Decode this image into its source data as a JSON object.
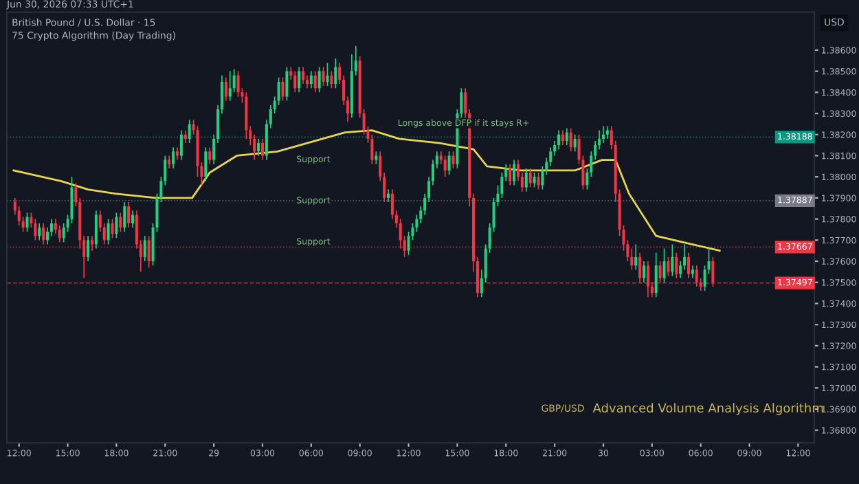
{
  "chart_data": {
    "type": "candlestick",
    "title": "British Pound / U.S. Dollar · 15",
    "subtitle": "75 Crypto Algorithm (Day Trading)",
    "ylabel": "USD",
    "x": [
      "2026-06-28T11:45",
      "2026-06-28T12:00",
      "2026-06-28T12:15",
      "2026-06-28T12:30",
      "2026-06-28T12:45",
      "2026-06-28T13:00",
      "2026-06-28T13:15",
      "2026-06-28T13:30",
      "2026-06-28T13:45",
      "2026-06-28T14:00",
      "2026-06-28T14:15",
      "2026-06-28T14:30",
      "2026-06-28T14:45",
      "2026-06-28T15:00",
      "2026-06-28T15:15",
      "2026-06-28T15:30",
      "2026-06-28T15:45",
      "2026-06-28T16:00",
      "2026-06-28T16:15",
      "2026-06-28T16:30",
      "2026-06-28T16:45",
      "2026-06-28T17:00",
      "2026-06-28T17:15",
      "2026-06-28T17:30",
      "2026-06-28T17:45",
      "2026-06-28T18:00",
      "2026-06-28T18:15",
      "2026-06-28T18:30",
      "2026-06-28T18:45",
      "2026-06-28T19:00",
      "2026-06-28T19:15",
      "2026-06-28T19:30",
      "2026-06-28T19:45",
      "2026-06-28T20:00",
      "2026-06-28T20:15",
      "2026-06-28T20:30",
      "2026-06-28T20:45",
      "2026-06-28T21:00",
      "2026-06-28T21:15",
      "2026-06-28T21:30",
      "2026-06-28T21:45",
      "2026-06-28T22:00",
      "2026-06-28T22:15",
      "2026-06-28T22:30",
      "2026-06-28T22:45",
      "2026-06-28T23:00",
      "2026-06-28T23:15",
      "2026-06-28T23:30",
      "2026-06-28T23:45",
      "2026-06-29T00:00",
      "2026-06-29T00:15",
      "2026-06-29T00:30",
      "2026-06-29T00:45",
      "2026-06-29T01:00",
      "2026-06-29T01:15",
      "2026-06-29T01:30",
      "2026-06-29T01:45",
      "2026-06-29T02:00",
      "2026-06-29T02:15",
      "2026-06-29T02:30",
      "2026-06-29T02:45",
      "2026-06-29T03:00",
      "2026-06-29T03:15",
      "2026-06-29T03:30",
      "2026-06-29T03:45",
      "2026-06-29T04:00",
      "2026-06-29T04:15",
      "2026-06-29T04:30",
      "2026-06-29T04:45",
      "2026-06-29T05:00",
      "2026-06-29T05:15",
      "2026-06-29T05:30",
      "2026-06-29T05:45",
      "2026-06-29T06:00",
      "2026-06-29T06:15",
      "2026-06-29T06:30",
      "2026-06-29T06:45",
      "2026-06-29T07:00",
      "2026-06-29T07:15",
      "2026-06-29T07:30",
      "2026-06-29T07:45",
      "2026-06-29T08:00",
      "2026-06-29T08:15",
      "2026-06-29T08:30",
      "2026-06-29T08:45",
      "2026-06-29T09:00",
      "2026-06-29T09:15",
      "2026-06-29T09:30",
      "2026-06-29T09:45",
      "2026-06-29T10:00",
      "2026-06-29T10:15",
      "2026-06-29T10:30",
      "2026-06-29T10:45",
      "2026-06-29T11:00",
      "2026-06-29T11:15",
      "2026-06-29T11:30",
      "2026-06-29T11:45",
      "2026-06-29T12:00",
      "2026-06-29T12:15",
      "2026-06-29T12:30",
      "2026-06-29T12:45",
      "2026-06-29T13:00",
      "2026-06-29T13:15",
      "2026-06-29T13:30",
      "2026-06-29T13:45",
      "2026-06-29T14:00",
      "2026-06-29T14:15",
      "2026-06-29T14:30",
      "2026-06-29T14:45",
      "2026-06-29T15:00",
      "2026-06-29T15:15",
      "2026-06-29T15:30",
      "2026-06-29T15:45",
      "2026-06-29T16:00",
      "2026-06-29T16:15",
      "2026-06-29T16:30",
      "2026-06-29T16:45",
      "2026-06-29T17:00",
      "2026-06-29T17:15",
      "2026-06-29T17:30",
      "2026-06-29T17:45",
      "2026-06-29T18:00",
      "2026-06-29T18:15",
      "2026-06-29T18:30",
      "2026-06-29T18:45",
      "2026-06-29T19:00",
      "2026-06-29T19:15",
      "2026-06-29T19:30",
      "2026-06-29T19:45",
      "2026-06-29T20:00",
      "2026-06-29T20:15",
      "2026-06-29T20:30",
      "2026-06-29T20:45",
      "2026-06-29T21:00",
      "2026-06-29T21:15",
      "2026-06-29T21:30",
      "2026-06-29T21:45",
      "2026-06-29T22:00",
      "2026-06-29T22:15",
      "2026-06-29T22:30",
      "2026-06-29T22:45",
      "2026-06-29T23:00",
      "2026-06-29T23:15",
      "2026-06-29T23:30",
      "2026-06-29T23:45",
      "2026-06-30T00:00",
      "2026-06-30T00:15",
      "2026-06-30T00:30",
      "2026-06-30T00:45",
      "2026-06-30T01:00",
      "2026-06-30T01:15",
      "2026-06-30T01:30",
      "2026-06-30T01:45",
      "2026-06-30T02:00",
      "2026-06-30T02:15",
      "2026-06-30T02:30",
      "2026-06-30T02:45",
      "2026-06-30T03:00",
      "2026-06-30T03:15",
      "2026-06-30T03:30",
      "2026-06-30T03:45",
      "2026-06-30T04:00",
      "2026-06-30T04:15",
      "2026-06-30T04:30",
      "2026-06-30T04:45",
      "2026-06-30T05:00",
      "2026-06-30T05:15",
      "2026-06-30T05:30",
      "2026-06-30T05:45",
      "2026-06-30T06:00",
      "2026-06-30T06:15",
      "2026-06-30T06:30",
      "2026-06-30T06:45"
    ],
    "ohlc": [
      [
        1.3788,
        1.379,
        1.3782,
        1.3784
      ],
      [
        1.3784,
        1.3786,
        1.3777,
        1.3779
      ],
      [
        1.3779,
        1.3781,
        1.3774,
        1.3776
      ],
      [
        1.3776,
        1.3783,
        1.3774,
        1.3781
      ],
      [
        1.3781,
        1.3783,
        1.3776,
        1.3778
      ],
      [
        1.3778,
        1.378,
        1.377,
        1.3772
      ],
      [
        1.3772,
        1.3778,
        1.377,
        1.3776
      ],
      [
        1.3776,
        1.3778,
        1.3768,
        1.377
      ],
      [
        1.377,
        1.3776,
        1.3768,
        1.3774
      ],
      [
        1.3774,
        1.378,
        1.3772,
        1.3778
      ],
      [
        1.3778,
        1.378,
        1.3773,
        1.3775
      ],
      [
        1.3775,
        1.3777,
        1.3769,
        1.3771
      ],
      [
        1.3771,
        1.3778,
        1.3769,
        1.3776
      ],
      [
        1.3776,
        1.3782,
        1.3774,
        1.378
      ],
      [
        1.378,
        1.38,
        1.3778,
        1.3795
      ],
      [
        1.3795,
        1.3797,
        1.3786,
        1.3788
      ],
      [
        1.3788,
        1.379,
        1.3766,
        1.377
      ],
      [
        1.377,
        1.3772,
        1.3752,
        1.3762
      ],
      [
        1.3762,
        1.3772,
        1.376,
        1.377
      ],
      [
        1.377,
        1.3772,
        1.3765,
        1.3768
      ],
      [
        1.3768,
        1.3784,
        1.3766,
        1.3782
      ],
      [
        1.3782,
        1.3784,
        1.3774,
        1.3776
      ],
      [
        1.3776,
        1.3778,
        1.3768,
        1.377
      ],
      [
        1.377,
        1.378,
        1.3768,
        1.3778
      ],
      [
        1.3778,
        1.378,
        1.3771,
        1.3773
      ],
      [
        1.3773,
        1.3783,
        1.3771,
        1.3781
      ],
      [
        1.3781,
        1.3783,
        1.3774,
        1.3776
      ],
      [
        1.3776,
        1.3788,
        1.3774,
        1.3786
      ],
      [
        1.3786,
        1.3788,
        1.3776,
        1.3778
      ],
      [
        1.3778,
        1.3784,
        1.3776,
        1.3782
      ],
      [
        1.3782,
        1.3784,
        1.3766,
        1.3768
      ],
      [
        1.3768,
        1.377,
        1.3755,
        1.3762
      ],
      [
        1.3762,
        1.3772,
        1.376,
        1.377
      ],
      [
        1.377,
        1.3772,
        1.3757,
        1.376
      ],
      [
        1.376,
        1.3778,
        1.3758,
        1.3776
      ],
      [
        1.3776,
        1.3792,
        1.3774,
        1.379
      ],
      [
        1.379,
        1.38,
        1.3788,
        1.3798
      ],
      [
        1.3798,
        1.381,
        1.3796,
        1.3808
      ],
      [
        1.3808,
        1.381,
        1.3804,
        1.3806
      ],
      [
        1.3806,
        1.3814,
        1.3804,
        1.3812
      ],
      [
        1.3812,
        1.3814,
        1.3808,
        1.381
      ],
      [
        1.381,
        1.3822,
        1.3808,
        1.382
      ],
      [
        1.382,
        1.3822,
        1.3816,
        1.3818
      ],
      [
        1.3818,
        1.3827,
        1.3816,
        1.3825
      ],
      [
        1.3825,
        1.3827,
        1.382,
        1.3822
      ],
      [
        1.3822,
        1.3824,
        1.38,
        1.3805
      ],
      [
        1.3805,
        1.3807,
        1.3796,
        1.38
      ],
      [
        1.38,
        1.3814,
        1.3798,
        1.3812
      ],
      [
        1.3812,
        1.3814,
        1.3806,
        1.3808
      ],
      [
        1.3808,
        1.382,
        1.3806,
        1.3818
      ],
      [
        1.3818,
        1.3834,
        1.3816,
        1.3832
      ],
      [
        1.3832,
        1.3848,
        1.383,
        1.3845
      ],
      [
        1.3845,
        1.3847,
        1.3836,
        1.3838
      ],
      [
        1.3838,
        1.385,
        1.3836,
        1.3842
      ],
      [
        1.3842,
        1.3851,
        1.384,
        1.3848
      ],
      [
        1.3848,
        1.385,
        1.3838,
        1.384
      ],
      [
        1.384,
        1.3842,
        1.3835,
        1.3838
      ],
      [
        1.3838,
        1.384,
        1.3818,
        1.3822
      ],
      [
        1.3822,
        1.3824,
        1.3815,
        1.3818
      ],
      [
        1.3818,
        1.382,
        1.3808,
        1.3812
      ],
      [
        1.3812,
        1.3818,
        1.381,
        1.3816
      ],
      [
        1.3816,
        1.3818,
        1.3808,
        1.381
      ],
      [
        1.381,
        1.3827,
        1.3808,
        1.3825
      ],
      [
        1.3825,
        1.3834,
        1.3823,
        1.3832
      ],
      [
        1.3832,
        1.3838,
        1.383,
        1.3836
      ],
      [
        1.3836,
        1.3847,
        1.3834,
        1.3845
      ],
      [
        1.3845,
        1.3847,
        1.3836,
        1.3838
      ],
      [
        1.3838,
        1.3852,
        1.3836,
        1.385
      ],
      [
        1.385,
        1.3852,
        1.3846,
        1.3848
      ],
      [
        1.3848,
        1.385,
        1.384,
        1.3842
      ],
      [
        1.3842,
        1.3852,
        1.384,
        1.385
      ],
      [
        1.385,
        1.3852,
        1.3844,
        1.3846
      ],
      [
        1.3846,
        1.3848,
        1.3842,
        1.3844
      ],
      [
        1.3844,
        1.385,
        1.3842,
        1.3848
      ],
      [
        1.3848,
        1.385,
        1.384,
        1.3842
      ],
      [
        1.3842,
        1.3852,
        1.384,
        1.385
      ],
      [
        1.385,
        1.3852,
        1.3843,
        1.3845
      ],
      [
        1.3845,
        1.3854,
        1.3843,
        1.3848
      ],
      [
        1.3848,
        1.385,
        1.3842,
        1.3844
      ],
      [
        1.3844,
        1.3856,
        1.3842,
        1.3852
      ],
      [
        1.3852,
        1.3854,
        1.3844,
        1.3846
      ],
      [
        1.3846,
        1.3848,
        1.3834,
        1.3836
      ],
      [
        1.3836,
        1.3838,
        1.3826,
        1.383
      ],
      [
        1.383,
        1.3858,
        1.3828,
        1.385
      ],
      [
        1.385,
        1.3862,
        1.3848,
        1.3855
      ],
      [
        1.3855,
        1.3857,
        1.3828,
        1.383
      ],
      [
        1.383,
        1.3832,
        1.382,
        1.3822
      ],
      [
        1.3822,
        1.3824,
        1.3816,
        1.3818
      ],
      [
        1.3818,
        1.382,
        1.3806,
        1.3808
      ],
      [
        1.3808,
        1.3812,
        1.3806,
        1.381
      ],
      [
        1.381,
        1.3812,
        1.3798,
        1.38
      ],
      [
        1.38,
        1.3802,
        1.3788,
        1.379
      ],
      [
        1.379,
        1.3794,
        1.3788,
        1.3792
      ],
      [
        1.3792,
        1.3794,
        1.378,
        1.3782
      ],
      [
        1.3782,
        1.3784,
        1.3776,
        1.3778
      ],
      [
        1.3778,
        1.378,
        1.3766,
        1.377
      ],
      [
        1.377,
        1.3772,
        1.3762,
        1.3765
      ],
      [
        1.3765,
        1.3774,
        1.3763,
        1.3772
      ],
      [
        1.3772,
        1.3778,
        1.377,
        1.3776
      ],
      [
        1.3776,
        1.3782,
        1.3774,
        1.378
      ],
      [
        1.378,
        1.3786,
        1.3778,
        1.3784
      ],
      [
        1.3784,
        1.3792,
        1.3782,
        1.379
      ],
      [
        1.379,
        1.38,
        1.3788,
        1.3798
      ],
      [
        1.3798,
        1.3808,
        1.3796,
        1.3806
      ],
      [
        1.3806,
        1.3812,
        1.3804,
        1.381
      ],
      [
        1.381,
        1.3812,
        1.3806,
        1.3808
      ],
      [
        1.3808,
        1.381,
        1.38,
        1.3803
      ],
      [
        1.3803,
        1.3812,
        1.3801,
        1.381
      ],
      [
        1.381,
        1.3812,
        1.3804,
        1.3806
      ],
      [
        1.3806,
        1.3832,
        1.3804,
        1.383
      ],
      [
        1.383,
        1.3842,
        1.3828,
        1.384
      ],
      [
        1.384,
        1.3842,
        1.3828,
        1.383
      ],
      [
        1.383,
        1.3832,
        1.3786,
        1.379
      ],
      [
        1.379,
        1.3792,
        1.3755,
        1.376
      ],
      [
        1.376,
        1.3762,
        1.3743,
        1.3745
      ],
      [
        1.3745,
        1.3756,
        1.3743,
        1.3752
      ],
      [
        1.3752,
        1.3768,
        1.375,
        1.3766
      ],
      [
        1.3766,
        1.3778,
        1.3764,
        1.3776
      ],
      [
        1.3776,
        1.379,
        1.3774,
        1.3788
      ],
      [
        1.3788,
        1.3796,
        1.3786,
        1.3792
      ],
      [
        1.3792,
        1.3802,
        1.379,
        1.38
      ],
      [
        1.38,
        1.3806,
        1.3798,
        1.3804
      ],
      [
        1.3804,
        1.3806,
        1.3796,
        1.3798
      ],
      [
        1.3798,
        1.3808,
        1.3796,
        1.3806
      ],
      [
        1.3806,
        1.3808,
        1.3798,
        1.38
      ],
      [
        1.38,
        1.3802,
        1.3793,
        1.3795
      ],
      [
        1.3795,
        1.3804,
        1.3793,
        1.3802
      ],
      [
        1.3802,
        1.3804,
        1.3795,
        1.3797
      ],
      [
        1.3797,
        1.3802,
        1.3795,
        1.38
      ],
      [
        1.38,
        1.3802,
        1.3794,
        1.3796
      ],
      [
        1.3796,
        1.3805,
        1.3794,
        1.3803
      ],
      [
        1.3803,
        1.3809,
        1.3801,
        1.3807
      ],
      [
        1.3807,
        1.3814,
        1.3805,
        1.3812
      ],
      [
        1.3812,
        1.3817,
        1.381,
        1.3815
      ],
      [
        1.3815,
        1.3822,
        1.3813,
        1.382
      ],
      [
        1.382,
        1.3822,
        1.3815,
        1.3817
      ],
      [
        1.3817,
        1.3823,
        1.3815,
        1.3821
      ],
      [
        1.3821,
        1.3823,
        1.3812,
        1.3814
      ],
      [
        1.3814,
        1.382,
        1.3812,
        1.3818
      ],
      [
        1.3818,
        1.382,
        1.3806,
        1.3808
      ],
      [
        1.3808,
        1.381,
        1.3794,
        1.3796
      ],
      [
        1.3796,
        1.3804,
        1.3794,
        1.3802
      ],
      [
        1.3802,
        1.3812,
        1.38,
        1.381
      ],
      [
        1.381,
        1.3817,
        1.3808,
        1.3815
      ],
      [
        1.3815,
        1.3822,
        1.3813,
        1.3818
      ],
      [
        1.3818,
        1.3824,
        1.3816,
        1.382
      ],
      [
        1.382,
        1.3824,
        1.3818,
        1.3822
      ],
      [
        1.3822,
        1.3824,
        1.3813,
        1.3815
      ],
      [
        1.3815,
        1.3817,
        1.3788,
        1.3792
      ],
      [
        1.3792,
        1.3794,
        1.3772,
        1.3775
      ],
      [
        1.3775,
        1.3777,
        1.3765,
        1.3768
      ],
      [
        1.3768,
        1.377,
        1.376,
        1.3762
      ],
      [
        1.3762,
        1.3766,
        1.3756,
        1.3758
      ],
      [
        1.3758,
        1.3768,
        1.3756,
        1.3762
      ],
      [
        1.3762,
        1.3764,
        1.375,
        1.3752
      ],
      [
        1.3752,
        1.376,
        1.375,
        1.3758
      ],
      [
        1.3758,
        1.376,
        1.3743,
        1.3748
      ],
      [
        1.3748,
        1.375,
        1.3743,
        1.3745
      ],
      [
        1.3745,
        1.3764,
        1.3743,
        1.3758
      ],
      [
        1.3758,
        1.376,
        1.375,
        1.3752
      ],
      [
        1.3752,
        1.3766,
        1.375,
        1.376
      ],
      [
        1.376,
        1.3762,
        1.3753,
        1.3755
      ],
      [
        1.3755,
        1.3768,
        1.3753,
        1.3762
      ],
      [
        1.3762,
        1.3764,
        1.3752,
        1.3754
      ],
      [
        1.3754,
        1.376,
        1.3752,
        1.3758
      ],
      [
        1.3758,
        1.3768,
        1.3756,
        1.3762
      ],
      [
        1.3762,
        1.3764,
        1.3752,
        1.3754
      ],
      [
        1.3754,
        1.3758,
        1.3752,
        1.3756
      ],
      [
        1.3756,
        1.3758,
        1.3748,
        1.375
      ],
      [
        1.375,
        1.3752,
        1.3746,
        1.3748
      ],
      [
        1.3748,
        1.3758,
        1.3746,
        1.3756
      ],
      [
        1.3756,
        1.3766,
        1.3754,
        1.376
      ],
      [
        1.376,
        1.3762,
        1.3748,
        1.375
      ]
    ],
    "colors": [
      "#f23645",
      "#f23645",
      "#f23645",
      "#22d07d",
      "#f23645",
      "#f23645",
      "#22d07d",
      "#f23645",
      "#22d07d",
      "#22d07d",
      "#f23645",
      "#f23645",
      "#22d07d",
      "#22d07d",
      "#22d07d",
      "#f23645",
      "#f23645",
      "#f23645",
      "#22d07d",
      "#f23645",
      "#22d07d",
      "#f23645",
      "#f23645",
      "#22d07d",
      "#f23645",
      "#22d07d",
      "#f23645",
      "#22d07d",
      "#f23645",
      "#22d07d",
      "#f23645",
      "#f23645",
      "#22d07d",
      "#f23645",
      "#22d07d",
      "#22d07d",
      "#22d07d",
      "#22d07d",
      "#f23645",
      "#22d07d",
      "#f23645",
      "#22d07d",
      "#f23645",
      "#22d07d",
      "#f23645",
      "#f23645",
      "#f23645",
      "#22d07d",
      "#f23645",
      "#22d07d",
      "#22d07d",
      "#22d07d",
      "#f23645",
      "#22d07d",
      "#22d07d",
      "#f23645",
      "#f23645",
      "#f23645",
      "#f23645",
      "#f23645",
      "#22d07d",
      "#f23645",
      "#22d07d",
      "#22d07d",
      "#22d07d",
      "#22d07d",
      "#f23645",
      "#22d07d",
      "#f23645",
      "#f23645",
      "#22d07d",
      "#f23645",
      "#f23645",
      "#22d07d",
      "#f23645",
      "#22d07d",
      "#f23645",
      "#22d07d",
      "#f23645",
      "#22d07d",
      "#f23645",
      "#f23645",
      "#f23645",
      "#22d07d",
      "#22d07d",
      "#f23645",
      "#f23645",
      "#f23645",
      "#f23645",
      "#22d07d",
      "#f23645",
      "#f23645",
      "#22d07d",
      "#f23645",
      "#f23645",
      "#f23645",
      "#f23645",
      "#22d07d",
      "#22d07d",
      "#22d07d",
      "#22d07d",
      "#22d07d",
      "#22d07d",
      "#22d07d",
      "#22d07d",
      "#f23645",
      "#f23645",
      "#22d07d",
      "#f23645",
      "#22d07d",
      "#22d07d",
      "#f23645",
      "#f23645",
      "#f23645",
      "#f23645",
      "#22d07d",
      "#22d07d",
      "#22d07d",
      "#22d07d",
      "#22d07d",
      "#22d07d",
      "#22d07d",
      "#f23645",
      "#22d07d",
      "#f23645",
      "#f23645",
      "#22d07d",
      "#f23645",
      "#22d07d",
      "#f23645",
      "#22d07d",
      "#22d07d",
      "#22d07d",
      "#22d07d",
      "#22d07d",
      "#f23645",
      "#22d07d",
      "#f23645",
      "#22d07d",
      "#f23645",
      "#f23645",
      "#22d07d",
      "#22d07d",
      "#22d07d",
      "#22d07d",
      "#22d07d",
      "#22d07d",
      "#f23645",
      "#f23645",
      "#f23645",
      "#f23645",
      "#f23645",
      "#f23645",
      "#22d07d",
      "#f23645",
      "#22d07d",
      "#f23645",
      "#f23645",
      "#22d07d",
      "#f23645",
      "#22d07d",
      "#f23645",
      "#22d07d",
      "#f23645",
      "#22d07d",
      "#22d07d",
      "#f23645",
      "#22d07d",
      "#f23645",
      "#f23645",
      "#22d07d",
      "#22d07d",
      "#f23645"
    ],
    "series": [
      {
        "type": "line",
        "color": "#e8d44d",
        "x": [
          "2026-06-28T11:40",
          "2026-06-28T14:35",
          "2026-06-28T16:15",
          "2026-06-28T17:55",
          "2026-06-28T20:25",
          "2026-06-28T22:40",
          "2026-06-28T23:45",
          "2026-06-29T01:25",
          "2026-06-29T03:55",
          "2026-06-29T08:05",
          "2026-06-29T09:45",
          "2026-06-29T11:25",
          "2026-06-29T13:55",
          "2026-06-29T16:00",
          "2026-06-29T16:50",
          "2026-06-29T18:55",
          "2026-06-29T22:15",
          "2026-06-29T23:55",
          "2026-06-30T00:45",
          "2026-06-30T01:35",
          "2026-06-30T02:25",
          "2026-06-30T03:15",
          "2026-06-30T04:55",
          "2026-06-30T07:10"
        ],
        "values": [
          1.3803,
          1.3798,
          1.3794,
          1.3792,
          1.379,
          1.379,
          1.3802,
          1.381,
          1.3812,
          1.3821,
          1.3822,
          1.3818,
          1.3816,
          1.3813,
          1.3805,
          1.3803,
          1.3803,
          1.3808,
          1.3808,
          1.3792,
          1.3782,
          1.3772,
          1.3769,
          1.3765
        ]
      }
    ],
    "ref_lines": [
      {
        "axis": "y",
        "value": 1.38188,
        "label": "1.38188",
        "color": "#089981",
        "line_style": "dotted"
      },
      {
        "axis": "y",
        "value": 1.37887,
        "label": "1.37887",
        "color": "#787b86",
        "line_style": "dotted"
      },
      {
        "axis": "y",
        "value": 1.37667,
        "label": "1.37667",
        "color": "#f23645",
        "line_style": "dotted"
      },
      {
        "axis": "y",
        "value": 1.37497,
        "label": "1.37497",
        "color": "#f23645",
        "line_style": "dashed"
      }
    ],
    "annotations": [
      "Jun 30, 2026 07:33 UTC+1",
      "GBP/USD",
      "Advanced Volume Analysis Algorithm",
      "Longs above DFP if it stays R+",
      "Support",
      "Support",
      "Support"
    ],
    "xlim": [
      "2026-06-28T11:15",
      "2026-06-30T13:00"
    ],
    "xticks": [
      {
        "value": "2026-06-28T12:00",
        "label": "12:00"
      },
      {
        "value": "2026-06-28T15:00",
        "label": "15:00"
      },
      {
        "value": "2026-06-28T18:00",
        "label": "18:00"
      },
      {
        "value": "2026-06-28T21:00",
        "label": "21:00"
      },
      {
        "value": "2026-06-29T00:00",
        "label": "29"
      },
      {
        "value": "2026-06-29T03:00",
        "label": "03:00"
      },
      {
        "value": "2026-06-29T06:00",
        "label": "06:00"
      },
      {
        "value": "2026-06-29T09:00",
        "label": "09:00"
      },
      {
        "value": "2026-06-29T12:00",
        "label": "12:00"
      },
      {
        "value": "2026-06-29T15:00",
        "label": "15:00"
      },
      {
        "value": "2026-06-29T18:00",
        "label": "18:00"
      },
      {
        "value": "2026-06-29T21:00",
        "label": "21:00"
      },
      {
        "value": "2026-06-30T00:00",
        "label": "30"
      },
      {
        "value": "2026-06-30T03:00",
        "label": "03:00"
      },
      {
        "value": "2026-06-30T06:00",
        "label": "06:00"
      },
      {
        "value": "2026-06-30T09:00",
        "label": "09:00"
      },
      {
        "value": "2026-06-30T12:00",
        "label": "12:00"
      }
    ],
    "ylim": [
      1.3674,
      1.3878
    ],
    "yticks": [
      {
        "value": 1.368,
        "label": "1.36800"
      },
      {
        "value": 1.369,
        "label": "1.36900"
      },
      {
        "value": 1.37,
        "label": "1.37000"
      },
      {
        "value": 1.371,
        "label": "1.37100"
      },
      {
        "value": 1.372,
        "label": "1.37200"
      },
      {
        "value": 1.373,
        "label": "1.37300"
      },
      {
        "value": 1.374,
        "label": "1.37400"
      },
      {
        "value": 1.375,
        "label": "1.37500"
      },
      {
        "value": 1.376,
        "label": "1.37600"
      },
      {
        "value": 1.377,
        "label": "1.37700"
      },
      {
        "value": 1.378,
        "label": "1.37800"
      },
      {
        "value": 1.379,
        "label": "1.37900"
      },
      {
        "value": 1.38,
        "label": "1.38000"
      },
      {
        "value": 1.381,
        "label": "1.38100"
      },
      {
        "value": 1.382,
        "label": "1.38200"
      },
      {
        "value": 1.383,
        "label": "1.38300"
      },
      {
        "value": 1.384,
        "label": "1.38400"
      },
      {
        "value": 1.385,
        "label": "1.38500"
      },
      {
        "value": 1.386,
        "label": "1.38600"
      }
    ],
    "grid": false
  }
}
